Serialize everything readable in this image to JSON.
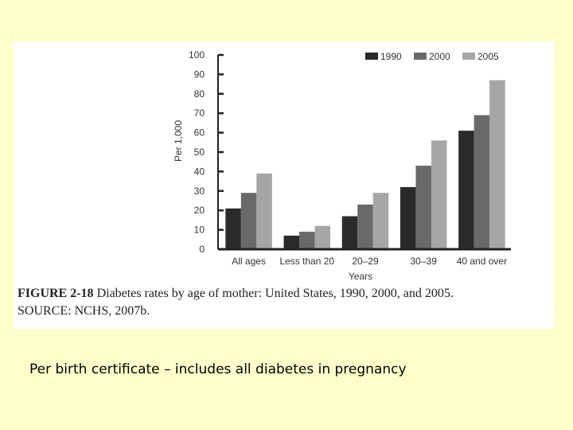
{
  "chart_data": {
    "type": "bar",
    "categories": [
      "All ages",
      "Less than 20",
      "20–29",
      "30–39",
      "40 and over"
    ],
    "series": [
      {
        "name": "1990",
        "color": "#2a2a2a",
        "values": [
          21,
          7,
          17,
          32,
          61
        ]
      },
      {
        "name": "2000",
        "color": "#696969",
        "values": [
          29,
          9,
          23,
          43,
          69
        ]
      },
      {
        "name": "2005",
        "color": "#a6a6a6",
        "values": [
          39,
          12,
          29,
          56,
          87
        ]
      }
    ],
    "ylabel": "Per 1,000",
    "xlabel": "Years",
    "ylim": [
      0,
      100
    ],
    "yticks": [
      0,
      10,
      20,
      30,
      40,
      50,
      60,
      70,
      80,
      90,
      100
    ],
    "legend_position": "top-right",
    "grid": false
  },
  "caption": {
    "label": "FIGURE 2-18",
    "text": "Diabetes rates by age of mother: United States, 1990, 2000, and 2005.",
    "source": "SOURCE: NCHS, 2007b."
  },
  "footnote": "Per birth certificate – includes all diabetes in pregnancy"
}
